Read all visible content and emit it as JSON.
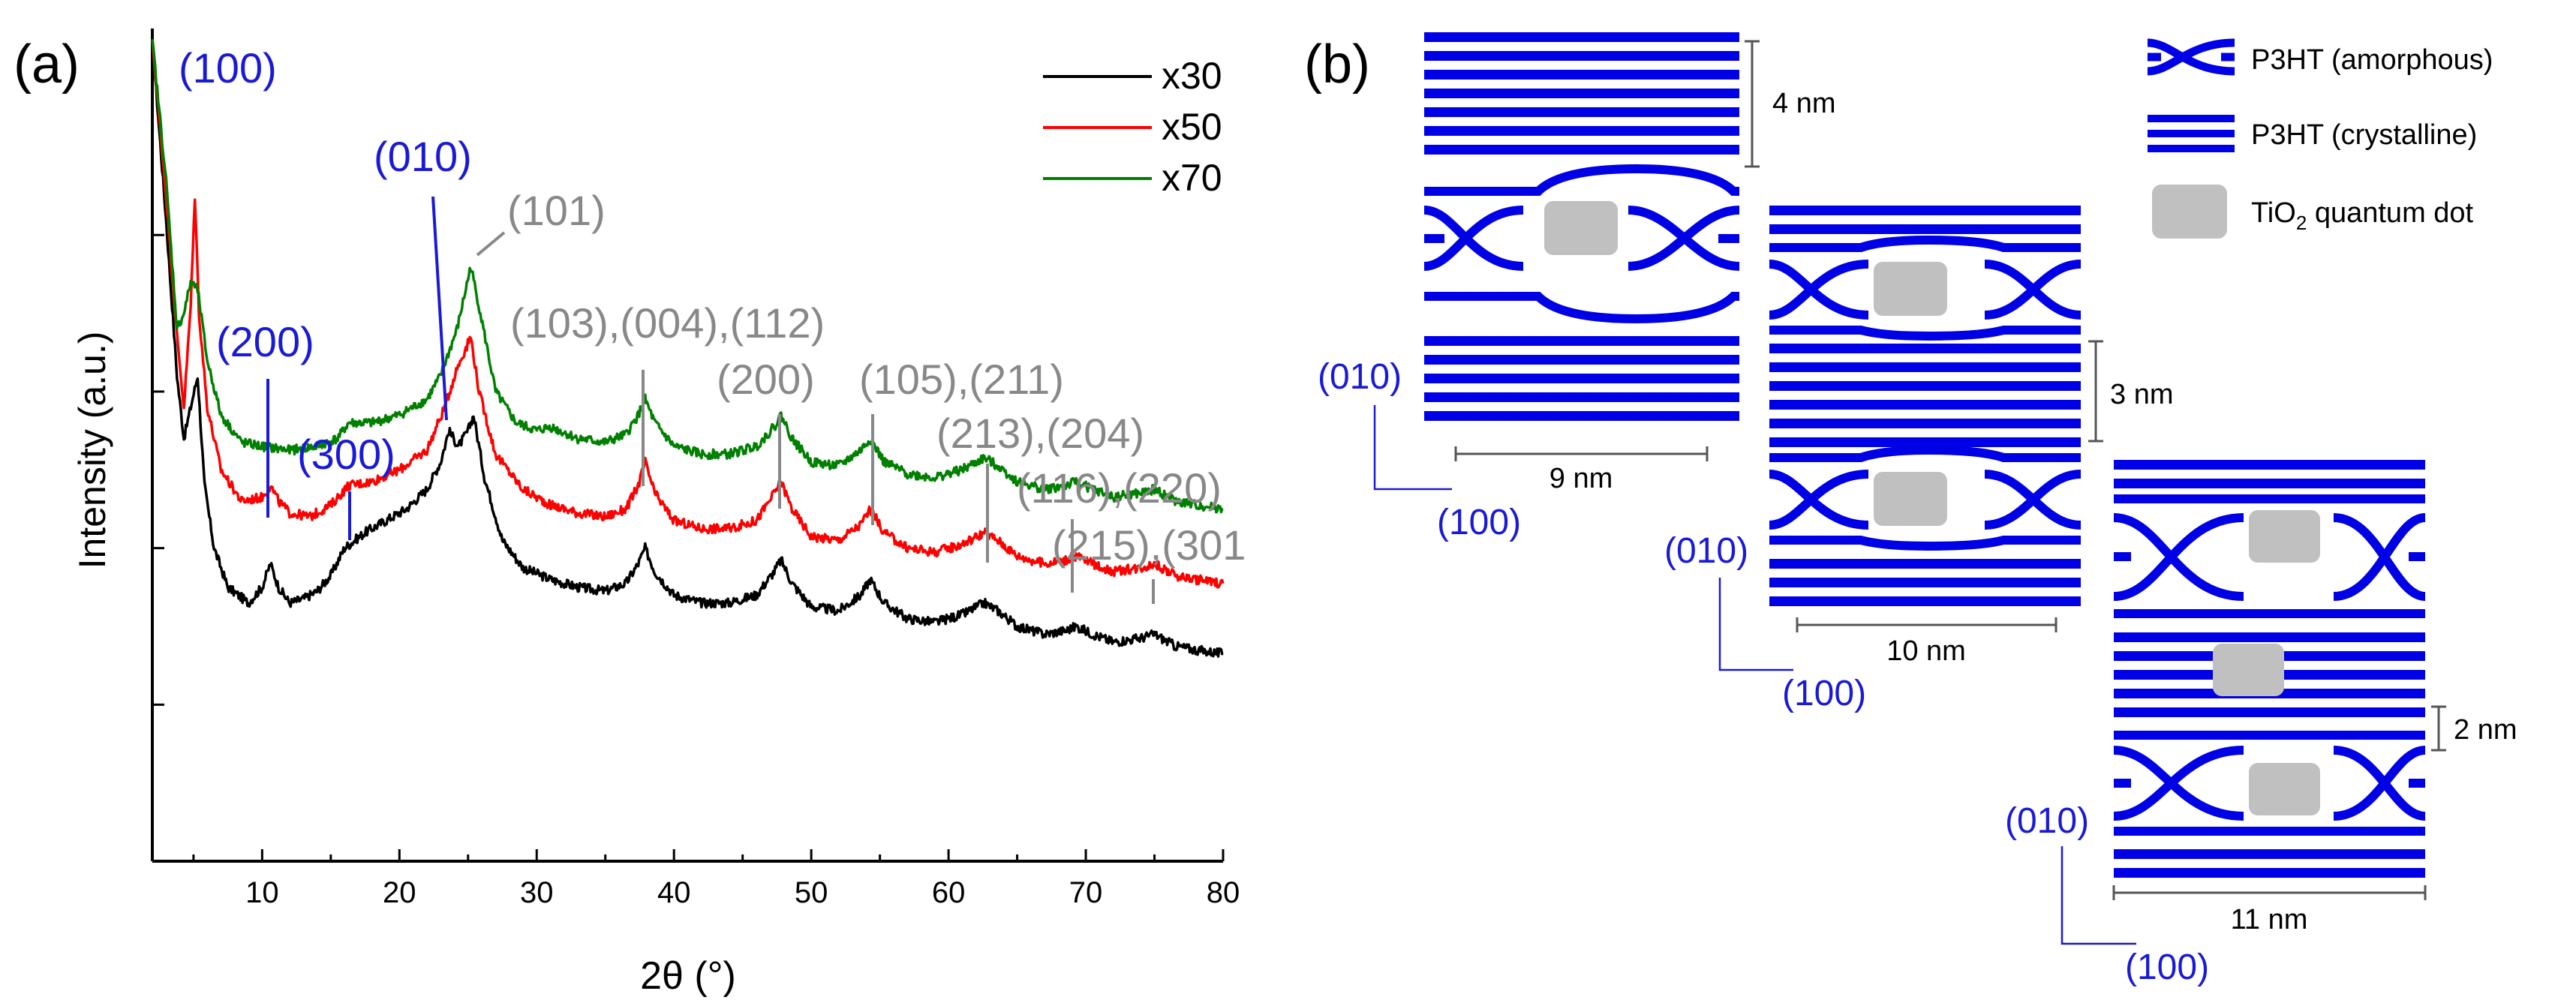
{
  "panel_a": {
    "label": "(a)",
    "chart_data": {
      "type": "line",
      "xlabel": "2θ (°)",
      "ylabel": "Intensity (a.u.)",
      "xlim": [
        2,
        80
      ],
      "ylim": [
        0,
        100
      ],
      "xticks": [
        10,
        20,
        30,
        40,
        50,
        60,
        70,
        80
      ],
      "grid": false,
      "legend_position": "top-right",
      "series": [
        {
          "name": "x30",
          "color": "#000000",
          "offset": 0,
          "points": [
            [
              2,
              105
            ],
            [
              3,
              82
            ],
            [
              3.8,
              62
            ],
            [
              4.3,
              54
            ],
            [
              4.8,
              58
            ],
            [
              5.3,
              62
            ],
            [
              5.8,
              48
            ],
            [
              6.5,
              40
            ],
            [
              7.5,
              35
            ],
            [
              9,
              33
            ],
            [
              10,
              35
            ],
            [
              10.6,
              38
            ],
            [
              11.2,
              35
            ],
            [
              12,
              33
            ],
            [
              13,
              33.5
            ],
            [
              14,
              34.5
            ],
            [
              15,
              36.5
            ],
            [
              16,
              40
            ],
            [
              17.5,
              42
            ],
            [
              19,
              43.5
            ],
            [
              20.5,
              45
            ],
            [
              22,
              47.5
            ],
            [
              23,
              51
            ],
            [
              23.6,
              55
            ],
            [
              24.3,
              53
            ],
            [
              25,
              55
            ],
            [
              25.4,
              57
            ],
            [
              26.2,
              49
            ],
            [
              27.5,
              41
            ],
            [
              29,
              37.5
            ],
            [
              31,
              36
            ],
            [
              33,
              35
            ],
            [
              35,
              34.5
            ],
            [
              36.5,
              35.5
            ],
            [
              37.4,
              38
            ],
            [
              37.9,
              40
            ],
            [
              38.6,
              37
            ],
            [
              40,
              34
            ],
            [
              42,
              33
            ],
            [
              44,
              33
            ],
            [
              46,
              34
            ],
            [
              47.3,
              37
            ],
            [
              47.8,
              38.5
            ],
            [
              48.6,
              35.5
            ],
            [
              50,
              32.5
            ],
            [
              52,
              32
            ],
            [
              53.6,
              34
            ],
            [
              54.3,
              36
            ],
            [
              55.3,
              33
            ],
            [
              57,
              31
            ],
            [
              59,
              30.5
            ],
            [
              61,
              31.5
            ],
            [
              62.6,
              33
            ],
            [
              63.6,
              32
            ],
            [
              65,
              30
            ],
            [
              67,
              29
            ],
            [
              68.6,
              29.5
            ],
            [
              69.3,
              30
            ],
            [
              70.5,
              29
            ],
            [
              72,
              28
            ],
            [
              74,
              28.5
            ],
            [
              75,
              29
            ],
            [
              76.5,
              27.5
            ],
            [
              78,
              27
            ],
            [
              80,
              26.5
            ]
          ]
        },
        {
          "name": "x50",
          "color": "#ff0000",
          "offset": 0,
          "points": [
            [
              2,
              105
            ],
            [
              3,
              85
            ],
            [
              3.8,
              67
            ],
            [
              4.3,
              58
            ],
            [
              4.8,
              71
            ],
            [
              5.1,
              85
            ],
            [
              5.4,
              70
            ],
            [
              6,
              58
            ],
            [
              7,
              50
            ],
            [
              8.5,
              46
            ],
            [
              10,
              46.5
            ],
            [
              10.6,
              48
            ],
            [
              11.2,
              46
            ],
            [
              12,
              44.5
            ],
            [
              13.5,
              44
            ],
            [
              15,
              45.5
            ],
            [
              16.3,
              48
            ],
            [
              18,
              48.5
            ],
            [
              20,
              50
            ],
            [
              22,
              52.5
            ],
            [
              23.3,
              58
            ],
            [
              24.2,
              63
            ],
            [
              25.2,
              67
            ],
            [
              25.8,
              60
            ],
            [
              27,
              52
            ],
            [
              29,
              47.5
            ],
            [
              31,
              45.5
            ],
            [
              33,
              44.5
            ],
            [
              35,
              44
            ],
            [
              36.5,
              45
            ],
            [
              37.4,
              48
            ],
            [
              37.9,
              51
            ],
            [
              38.6,
              47
            ],
            [
              40,
              43.5
            ],
            [
              42,
              42.5
            ],
            [
              44,
              42.5
            ],
            [
              46,
              43.5
            ],
            [
              47.3,
              47
            ],
            [
              47.8,
              48.5
            ],
            [
              48.6,
              45
            ],
            [
              50,
              41.5
            ],
            [
              52,
              41
            ],
            [
              53.6,
              43
            ],
            [
              54.3,
              45
            ],
            [
              55.3,
              42
            ],
            [
              57,
              40
            ],
            [
              59,
              39.5
            ],
            [
              61,
              40.5
            ],
            [
              62.6,
              42
            ],
            [
              63.6,
              41
            ],
            [
              65,
              39
            ],
            [
              67,
              38
            ],
            [
              68.6,
              38.5
            ],
            [
              69.3,
              39
            ],
            [
              70.5,
              38
            ],
            [
              72,
              37
            ],
            [
              74,
              37.5
            ],
            [
              75,
              38
            ],
            [
              76.5,
              36.5
            ],
            [
              78,
              36
            ],
            [
              80,
              35.5
            ]
          ]
        },
        {
          "name": "x70",
          "color": "#008000",
          "offset": 0,
          "points": [
            [
              2,
              105
            ],
            [
              3,
              87
            ],
            [
              3.8,
              68
            ],
            [
              4.3,
              70
            ],
            [
              4.8,
              74
            ],
            [
              5.3,
              73
            ],
            [
              6,
              64
            ],
            [
              7,
              57
            ],
            [
              8.5,
              53.5
            ],
            [
              10,
              53
            ],
            [
              12,
              52.5
            ],
            [
              14,
              53
            ],
            [
              15.5,
              54
            ],
            [
              16.3,
              56
            ],
            [
              18,
              56
            ],
            [
              20,
              57
            ],
            [
              22,
              59
            ],
            [
              23,
              62
            ],
            [
              24.2,
              68
            ],
            [
              25.2,
              76
            ],
            [
              25.9,
              70
            ],
            [
              27,
              60
            ],
            [
              28.5,
              56
            ],
            [
              30,
              55
            ],
            [
              31,
              55.5
            ],
            [
              33,
              54
            ],
            [
              35,
              53.5
            ],
            [
              36.5,
              54.5
            ],
            [
              37.4,
              57
            ],
            [
              37.9,
              59
            ],
            [
              38.6,
              56
            ],
            [
              40,
              53
            ],
            [
              42,
              52
            ],
            [
              44,
              52
            ],
            [
              46,
              53
            ],
            [
              47.3,
              55.5
            ],
            [
              47.8,
              57
            ],
            [
              48.6,
              54
            ],
            [
              50,
              51
            ],
            [
              52,
              50.5
            ],
            [
              53.6,
              52.5
            ],
            [
              54.3,
              54
            ],
            [
              55.3,
              51
            ],
            [
              57,
              49.5
            ],
            [
              59,
              49
            ],
            [
              61,
              50
            ],
            [
              62.6,
              51.5
            ],
            [
              63.6,
              50.5
            ],
            [
              65,
              48.5
            ],
            [
              67,
              47.5
            ],
            [
              68.6,
              48
            ],
            [
              69.3,
              48.5
            ],
            [
              70.5,
              47.5
            ],
            [
              72,
              46.5
            ],
            [
              74,
              47
            ],
            [
              75,
              47.5
            ],
            [
              76.5,
              46
            ],
            [
              78,
              45.5
            ],
            [
              80,
              45
            ]
          ]
        }
      ],
      "annotations": [
        {
          "text": "(100)",
          "color": "#1a1ad6",
          "x": 5.2
        },
        {
          "text": "(200)",
          "color": "#1a1ad6",
          "x": 10.4
        },
        {
          "text": "(300)",
          "color": "#1a1ad6",
          "x": 16.3
        },
        {
          "text": "(010)",
          "color": "#1a1ad6",
          "x": 23.5
        },
        {
          "text": "(101)",
          "color": "#888888",
          "x": 25.3
        },
        {
          "text": "(103),(004),(112)",
          "color": "#888888",
          "x": 38.0
        },
        {
          "text": "(200)",
          "color": "#888888",
          "x": 47.8
        },
        {
          "text": "(105),(211)",
          "color": "#888888",
          "x": 54.3
        },
        {
          "text": "(213),(204)",
          "color": "#888888",
          "x": 62.7
        },
        {
          "text": "(116),(220)",
          "color": "#888888",
          "x": 69.0
        },
        {
          "text": "(215),(301",
          "color": "#888888",
          "x": 75.0
        }
      ]
    }
  },
  "panel_b": {
    "label": "(b)",
    "legend": {
      "amorphous": "P3HT (amorphous)",
      "crystalline": "P3HT (crystalline)",
      "qd_prefix": "TiO",
      "qd_sub": "2",
      "qd_suffix": " quantum dot"
    },
    "structures": [
      {
        "top_dim": "4 nm",
        "bottom_dim": "9 nm",
        "axis_y": "(010)",
        "axis_x": "(100)"
      },
      {
        "side_dim": "3 nm",
        "bottom_dim": "10 nm",
        "axis_y": "(010)",
        "axis_x": "(100)"
      },
      {
        "side_dim": "2 nm",
        "bottom_dim": "11 nm",
        "axis_y": "(010)",
        "axis_x": "(100)"
      }
    ],
    "colors": {
      "polymer": "#0000e6",
      "qd": "#c0c0c0",
      "axis": "#1a1ad6",
      "dim": "#555555"
    }
  }
}
